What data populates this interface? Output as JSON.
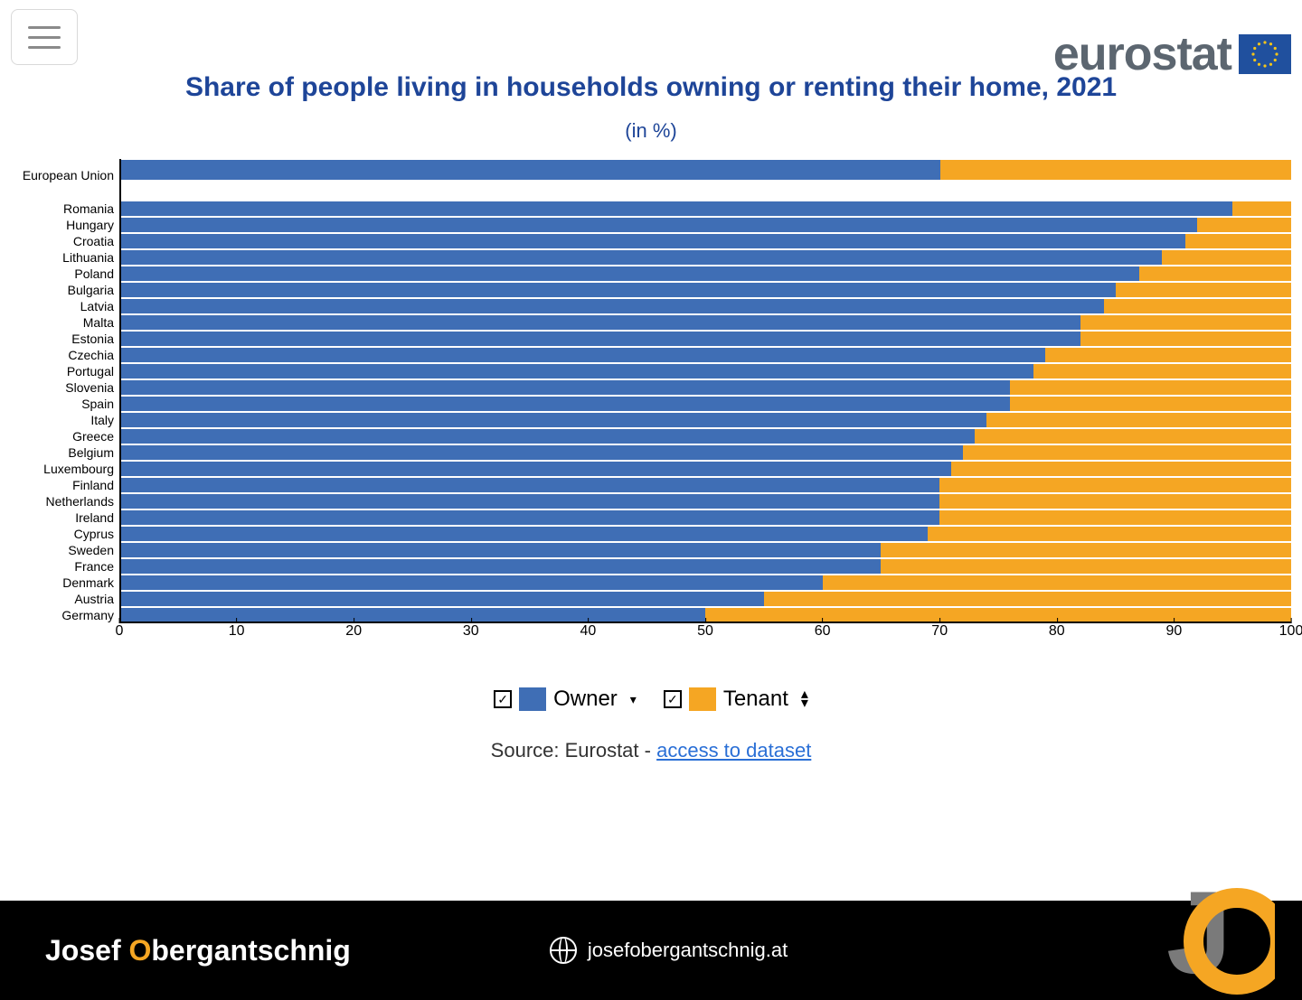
{
  "header": {
    "brand_word": "eurostat",
    "brand_flag_bg": "#20509e",
    "brand_star_color": "#f5c518"
  },
  "title": "Share of people living in households owning or renting their home, 2021",
  "subtitle": "(in %)",
  "chart": {
    "type": "stacked-horizontal-bar",
    "xlim": [
      0,
      100
    ],
    "xticks": [
      0,
      10,
      20,
      30,
      40,
      50,
      60,
      70,
      80,
      90,
      100
    ],
    "owner_color": "#3f6eb5",
    "tenant_color": "#f5a623",
    "background_color": "#ffffff",
    "label_fontsize": 14,
    "eu_row": {
      "label": "European Union",
      "owner": 70,
      "tenant": 30
    },
    "rows": [
      {
        "label": "Romania",
        "owner": 95,
        "tenant": 5
      },
      {
        "label": "Hungary",
        "owner": 92,
        "tenant": 8
      },
      {
        "label": "Croatia",
        "owner": 91,
        "tenant": 9
      },
      {
        "label": "Lithuania",
        "owner": 89,
        "tenant": 11
      },
      {
        "label": "Poland",
        "owner": 87,
        "tenant": 13
      },
      {
        "label": "Bulgaria",
        "owner": 85,
        "tenant": 15
      },
      {
        "label": "Latvia",
        "owner": 84,
        "tenant": 16
      },
      {
        "label": "Malta",
        "owner": 82,
        "tenant": 18
      },
      {
        "label": "Estonia",
        "owner": 82,
        "tenant": 18
      },
      {
        "label": "Czechia",
        "owner": 79,
        "tenant": 21
      },
      {
        "label": "Portugal",
        "owner": 78,
        "tenant": 22
      },
      {
        "label": "Slovenia",
        "owner": 76,
        "tenant": 24
      },
      {
        "label": "Spain",
        "owner": 76,
        "tenant": 24
      },
      {
        "label": "Italy",
        "owner": 74,
        "tenant": 26
      },
      {
        "label": "Greece",
        "owner": 73,
        "tenant": 27
      },
      {
        "label": "Belgium",
        "owner": 72,
        "tenant": 28
      },
      {
        "label": "Luxembourg",
        "owner": 71,
        "tenant": 29
      },
      {
        "label": "Finland",
        "owner": 70,
        "tenant": 30
      },
      {
        "label": "Netherlands",
        "owner": 70,
        "tenant": 30
      },
      {
        "label": "Ireland",
        "owner": 70,
        "tenant": 30
      },
      {
        "label": "Cyprus",
        "owner": 69,
        "tenant": 31
      },
      {
        "label": "Sweden",
        "owner": 65,
        "tenant": 35
      },
      {
        "label": "France",
        "owner": 65,
        "tenant": 35
      },
      {
        "label": "Denmark",
        "owner": 60,
        "tenant": 40
      },
      {
        "label": "Austria",
        "owner": 55,
        "tenant": 45
      },
      {
        "label": "Germany",
        "owner": 50,
        "tenant": 50
      }
    ]
  },
  "legend": {
    "owner_label": "Owner",
    "tenant_label": "Tenant"
  },
  "source": {
    "prefix": "Source: Eurostat - ",
    "link_text": "access to dataset"
  },
  "footer": {
    "name_first": "Josef ",
    "name_accent": "O",
    "name_rest": "bergantschnig",
    "site": "josefobergantschnig.at",
    "accent_color": "#f5a623",
    "j_color": "#7a7a7a"
  }
}
